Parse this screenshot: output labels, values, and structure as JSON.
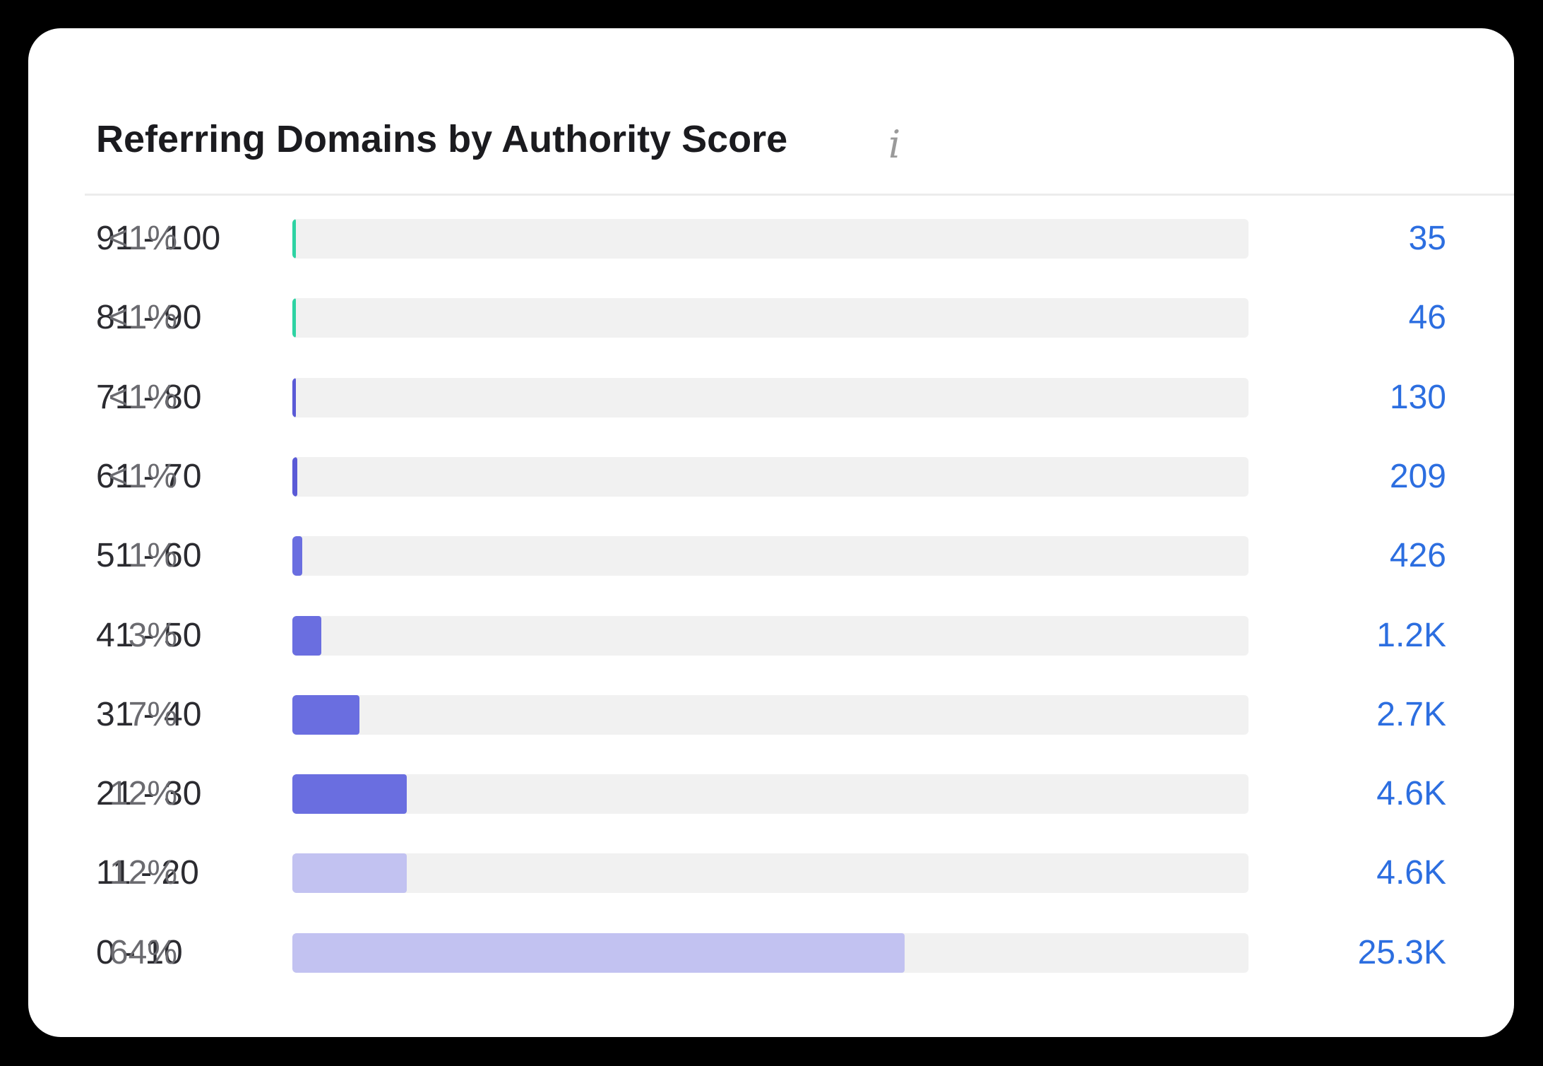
{
  "chart_data": {
    "type": "bar",
    "orientation": "horizontal",
    "title": "Referring Domains by Authority Score",
    "categories": [
      "91 - 100",
      "81 - 90",
      "71 - 80",
      "61 - 70",
      "51 - 60",
      "41 - 50",
      "31 - 40",
      "21 - 30",
      "11 - 20",
      "0 - 10"
    ],
    "values": [
      0.1,
      0.1,
      0.3,
      0.5,
      1,
      3,
      7,
      12,
      12,
      64
    ],
    "percent_labels": [
      "<1%",
      "<1%",
      "<1%",
      "<1%",
      "1%",
      "3%",
      "7%",
      "12%",
      "12%",
      "64%"
    ],
    "count_labels": [
      "35",
      "46",
      "130",
      "209",
      "426",
      "1.2K",
      "2.7K",
      "4.6K",
      "4.6K",
      "25.3K"
    ],
    "bar_colors": [
      "#2ed3a3",
      "#2ed3a3",
      "#5a5ad6",
      "#5a5ad6",
      "#6a6ee0",
      "#6a6ee0",
      "#6a6ee0",
      "#6a6ee0",
      "#c2c2f1",
      "#c2c2f1"
    ],
    "track_color": "#f1f1f1",
    "count_color": "#2c6ee0",
    "xlim": [
      0,
      100
    ],
    "grid": false,
    "legend": "none"
  },
  "header": {
    "info_icon": "info-icon",
    "info_glyph": "i"
  }
}
